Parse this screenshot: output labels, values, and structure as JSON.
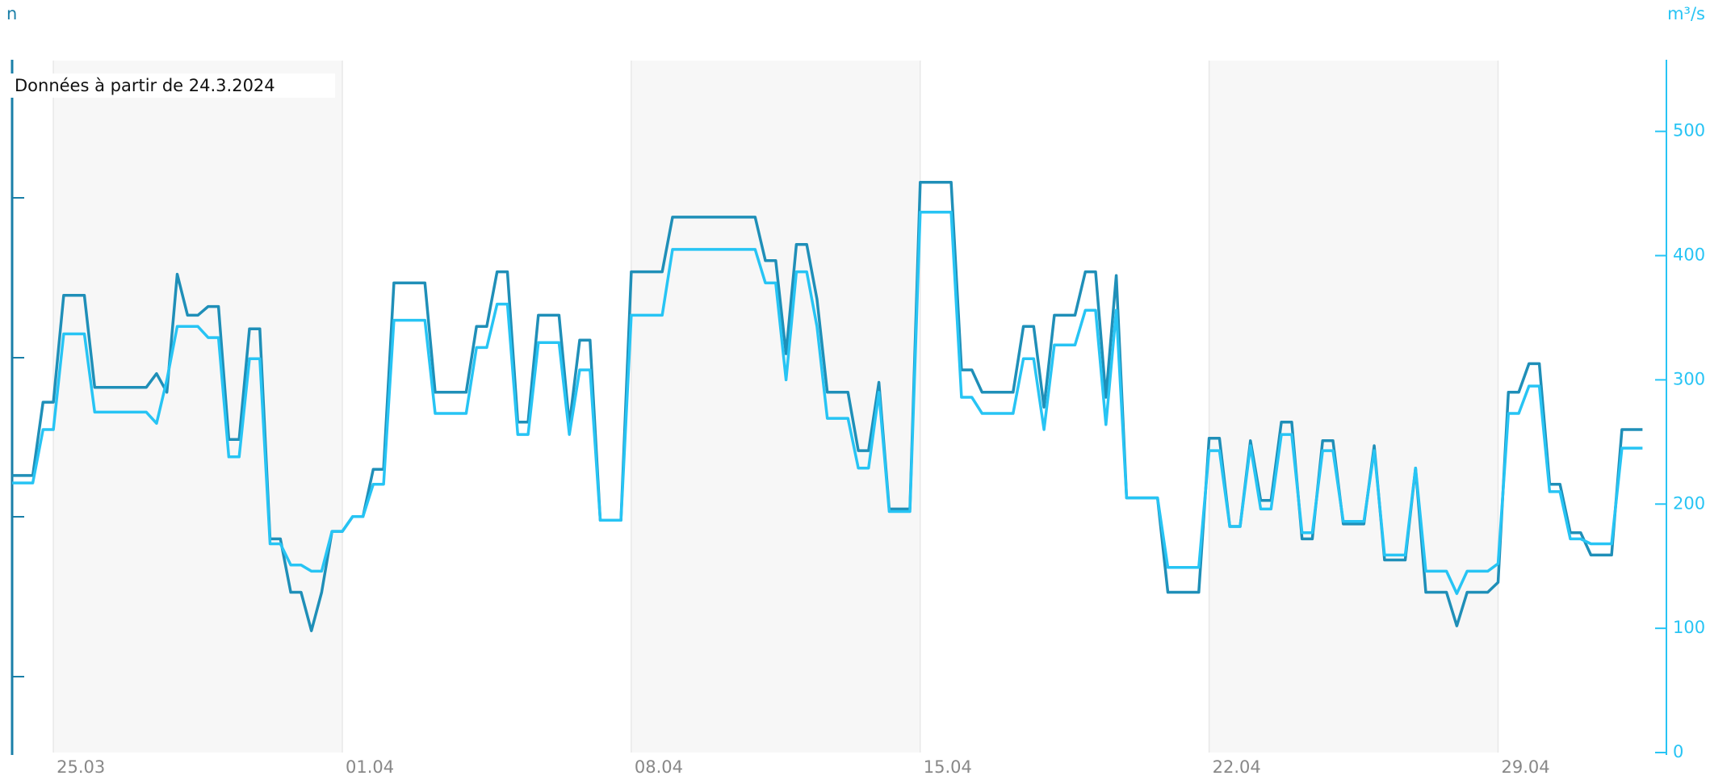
{
  "chart_data": {
    "type": "line",
    "annotation": "Données à partir de 24.3.2024",
    "ylabel": "n",
    "y2label": "m³/s",
    "x": [
      "2024-03-24T00:00",
      "2024-03-24T06:00",
      "2024-03-24T12:00",
      "2024-03-24T18:00",
      "2024-03-25T00:00",
      "2024-03-25T06:00",
      "2024-03-25T12:00",
      "2024-03-25T18:00",
      "2024-03-26T00:00",
      "2024-03-26T06:00",
      "2024-03-26T12:00",
      "2024-03-26T18:00",
      "2024-03-27T00:00",
      "2024-03-27T06:00",
      "2024-03-27T12:00",
      "2024-03-27T18:00",
      "2024-03-28T00:00",
      "2024-03-28T06:00",
      "2024-03-28T12:00",
      "2024-03-28T18:00",
      "2024-03-29T00:00",
      "2024-03-29T06:00",
      "2024-03-29T12:00",
      "2024-03-29T18:00",
      "2024-03-30T00:00",
      "2024-03-30T06:00",
      "2024-03-30T12:00",
      "2024-03-30T18:00",
      "2024-03-31T00:00",
      "2024-03-31T06:00",
      "2024-03-31T12:00",
      "2024-03-31T18:00",
      "2024-04-01T00:00",
      "2024-04-01T06:00",
      "2024-04-01T12:00",
      "2024-04-01T18:00",
      "2024-04-02T00:00",
      "2024-04-02T06:00",
      "2024-04-02T12:00",
      "2024-04-02T18:00",
      "2024-04-03T00:00",
      "2024-04-03T06:00",
      "2024-04-03T12:00",
      "2024-04-03T18:00",
      "2024-04-04T00:00",
      "2024-04-04T06:00",
      "2024-04-04T12:00",
      "2024-04-04T18:00",
      "2024-04-05T00:00",
      "2024-04-05T06:00",
      "2024-04-05T12:00",
      "2024-04-05T18:00",
      "2024-04-06T00:00",
      "2024-04-06T06:00",
      "2024-04-06T12:00",
      "2024-04-06T18:00",
      "2024-04-07T00:00",
      "2024-04-07T06:00",
      "2024-04-07T12:00",
      "2024-04-07T18:00",
      "2024-04-08T00:00",
      "2024-04-08T06:00",
      "2024-04-08T12:00",
      "2024-04-08T18:00",
      "2024-04-09T00:00",
      "2024-04-09T06:00",
      "2024-04-09T12:00",
      "2024-04-09T18:00",
      "2024-04-10T00:00",
      "2024-04-10T06:00",
      "2024-04-10T12:00",
      "2024-04-10T18:00",
      "2024-04-11T00:00",
      "2024-04-11T06:00",
      "2024-04-11T12:00",
      "2024-04-11T18:00",
      "2024-04-12T00:00",
      "2024-04-12T06:00",
      "2024-04-12T12:00",
      "2024-04-12T18:00",
      "2024-04-13T00:00",
      "2024-04-13T06:00",
      "2024-04-13T12:00",
      "2024-04-13T18:00",
      "2024-04-14T00:00",
      "2024-04-14T06:00",
      "2024-04-14T12:00",
      "2024-04-14T18:00",
      "2024-04-15T00:00",
      "2024-04-15T06:00",
      "2024-04-15T12:00",
      "2024-04-15T18:00",
      "2024-04-16T00:00",
      "2024-04-16T06:00",
      "2024-04-16T12:00",
      "2024-04-16T18:00",
      "2024-04-17T00:00",
      "2024-04-17T06:00",
      "2024-04-17T12:00",
      "2024-04-17T18:00",
      "2024-04-18T00:00",
      "2024-04-18T06:00",
      "2024-04-18T12:00",
      "2024-04-18T18:00",
      "2024-04-19T00:00",
      "2024-04-19T06:00",
      "2024-04-19T12:00",
      "2024-04-19T18:00",
      "2024-04-20T00:00",
      "2024-04-20T06:00",
      "2024-04-20T12:00",
      "2024-04-20T18:00",
      "2024-04-21T00:00",
      "2024-04-21T06:00",
      "2024-04-21T12:00",
      "2024-04-21T18:00",
      "2024-04-22T00:00",
      "2024-04-22T06:00",
      "2024-04-22T12:00",
      "2024-04-22T18:00",
      "2024-04-23T00:00",
      "2024-04-23T06:00",
      "2024-04-23T12:00",
      "2024-04-23T18:00",
      "2024-04-24T00:00",
      "2024-04-24T06:00",
      "2024-04-24T12:00",
      "2024-04-24T18:00",
      "2024-04-25T00:00",
      "2024-04-25T06:00",
      "2024-04-25T12:00",
      "2024-04-25T18:00",
      "2024-04-26T00:00",
      "2024-04-26T06:00",
      "2024-04-26T12:00",
      "2024-04-26T18:00",
      "2024-04-27T00:00",
      "2024-04-27T06:00",
      "2024-04-27T12:00",
      "2024-04-27T18:00",
      "2024-04-28T00:00",
      "2024-04-28T06:00",
      "2024-04-28T12:00",
      "2024-04-28T18:00",
      "2024-04-29T00:00",
      "2024-04-29T06:00",
      "2024-04-29T12:00",
      "2024-04-29T18:00",
      "2024-04-30T00:00",
      "2024-04-30T06:00",
      "2024-04-30T12:00",
      "2024-04-30T18:00",
      "2024-05-01T00:00",
      "2024-05-01T06:00",
      "2024-05-01T12:00",
      "2024-05-01T18:00",
      "2024-05-02T00:00",
      "2024-05-02T06:00",
      "2024-05-02T12:00"
    ],
    "series": [
      {
        "color": "#1f8fb8",
        "axis": "y2",
        "values": [
          223,
          223,
          223,
          282,
          282,
          368,
          368,
          368,
          294,
          294,
          294,
          294,
          294,
          294,
          305,
          290,
          385,
          352,
          352,
          359,
          359,
          252,
          252,
          341,
          341,
          172,
          172,
          129,
          129,
          98,
          129,
          178,
          178,
          190,
          190,
          228,
          228,
          378,
          378,
          378,
          378,
          290,
          290,
          290,
          290,
          343,
          343,
          387,
          387,
          266,
          266,
          352,
          352,
          352,
          264,
          332,
          332,
          187,
          187,
          187,
          387,
          387,
          387,
          387,
          431,
          431,
          431,
          431,
          431,
          431,
          431,
          431,
          431,
          396,
          396,
          321,
          409,
          409,
          365,
          290,
          290,
          290,
          243,
          243,
          298,
          196,
          196,
          196,
          459,
          459,
          459,
          459,
          308,
          308,
          290,
          290,
          290,
          290,
          343,
          343,
          278,
          352,
          352,
          352,
          387,
          387,
          286,
          384,
          205,
          205,
          205,
          205,
          129,
          129,
          129,
          129,
          253,
          253,
          182,
          182,
          251,
          203,
          203,
          266,
          266,
          172,
          172,
          251,
          251,
          184,
          184,
          184,
          247,
          155,
          155,
          155,
          229,
          129,
          129,
          129,
          102,
          129,
          129,
          129,
          137,
          290,
          290,
          313,
          313,
          216,
          216,
          177,
          177,
          159,
          159,
          159,
          260,
          260,
          260
        ]
      },
      {
        "color": "#27c4f4",
        "axis": "y2",
        "values": [
          217,
          217,
          217,
          260,
          260,
          337,
          337,
          337,
          274,
          274,
          274,
          274,
          274,
          274,
          265,
          300,
          343,
          343,
          343,
          334,
          334,
          238,
          238,
          317,
          317,
          168,
          168,
          151,
          151,
          146,
          146,
          178,
          178,
          190,
          190,
          216,
          216,
          348,
          348,
          348,
          348,
          273,
          273,
          273,
          273,
          326,
          326,
          361,
          361,
          256,
          256,
          330,
          330,
          330,
          256,
          308,
          308,
          187,
          187,
          187,
          352,
          352,
          352,
          352,
          405,
          405,
          405,
          405,
          405,
          405,
          405,
          405,
          405,
          378,
          378,
          300,
          387,
          387,
          343,
          269,
          269,
          269,
          229,
          229,
          290,
          194,
          194,
          194,
          435,
          435,
          435,
          435,
          286,
          286,
          273,
          273,
          273,
          273,
          317,
          317,
          260,
          328,
          328,
          328,
          356,
          356,
          264,
          356,
          205,
          205,
          205,
          205,
          149,
          149,
          149,
          149,
          243,
          243,
          182,
          182,
          247,
          196,
          196,
          256,
          256,
          177,
          177,
          243,
          243,
          186,
          186,
          186,
          243,
          159,
          159,
          159,
          229,
          146,
          146,
          146,
          128,
          146,
          146,
          146,
          152,
          273,
          273,
          295,
          295,
          210,
          210,
          172,
          172,
          168,
          168,
          168,
          245,
          245,
          245
        ]
      }
    ],
    "xlim": [
      "2024-03-24T00:00",
      "2024-05-03T00:00"
    ],
    "xticks": [
      {
        "value": "2024-03-25T00:00",
        "label": "25.03"
      },
      {
        "value": "2024-04-01T00:00",
        "label": "01.04"
      },
      {
        "value": "2024-04-08T00:00",
        "label": "08.04"
      },
      {
        "value": "2024-04-15T00:00",
        "label": "15.04"
      },
      {
        "value": "2024-04-22T00:00",
        "label": "22.04"
      },
      {
        "value": "2024-04-29T00:00",
        "label": "29.04"
      }
    ],
    "y2lim": [
      0,
      557
    ],
    "y2ticks": [
      0,
      100,
      200,
      300,
      400,
      500
    ]
  }
}
